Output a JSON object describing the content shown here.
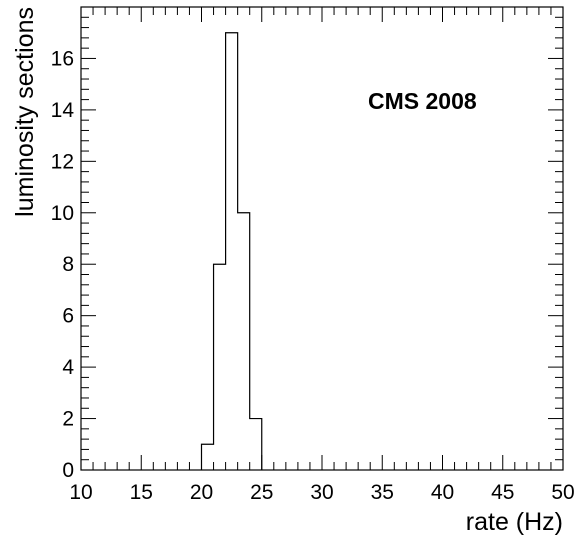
{
  "chart_data": {
    "type": "bar",
    "style": "step-histogram",
    "xlabel": "rate (Hz)",
    "ylabel": "luminosity sections",
    "annotation": "CMS 2008",
    "xlim": [
      10,
      50
    ],
    "ylim": [
      0,
      18
    ],
    "x_ticks": [
      "10",
      "15",
      "20",
      "25",
      "30",
      "35",
      "40",
      "45",
      "50"
    ],
    "y_ticks": [
      "0",
      "2",
      "4",
      "6",
      "8",
      "10",
      "12",
      "14",
      "16"
    ],
    "bin_edges": [
      20,
      21,
      22,
      23,
      24,
      25
    ],
    "values": [
      1,
      8,
      17,
      10,
      2
    ],
    "grid": false,
    "legend": "none",
    "line_color": "#000000"
  }
}
